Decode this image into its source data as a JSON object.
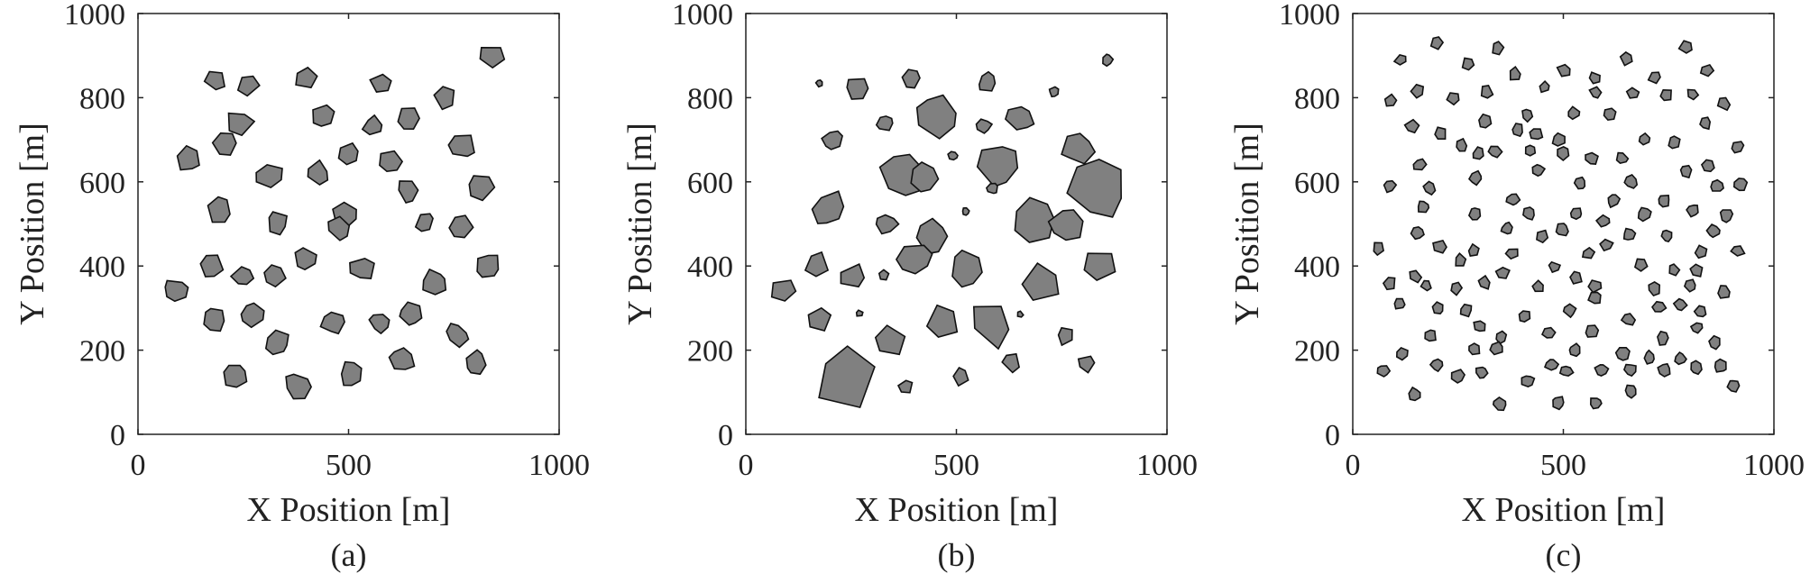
{
  "chart_data": [
    {
      "type": "scatter",
      "panel_label": "(a)",
      "xlabel": "X Position [m]",
      "ylabel": "Y Position [m]",
      "xlim": [
        0,
        1000
      ],
      "ylim": [
        0,
        1000
      ],
      "xticks": [
        "0",
        "500",
        "1000"
      ],
      "yticks": [
        "0",
        "200",
        "400",
        "600",
        "800",
        "1000"
      ],
      "grid": false,
      "marker_fill": "#808080",
      "obstacles": [
        {
          "x": 187,
          "y": 840,
          "s": 28
        },
        {
          "x": 262,
          "y": 828,
          "s": 28
        },
        {
          "x": 398,
          "y": 842,
          "s": 28
        },
        {
          "x": 577,
          "y": 832,
          "s": 27
        },
        {
          "x": 730,
          "y": 800,
          "s": 29
        },
        {
          "x": 837,
          "y": 895,
          "s": 31
        },
        {
          "x": 240,
          "y": 738,
          "s": 34
        },
        {
          "x": 442,
          "y": 754,
          "s": 30
        },
        {
          "x": 560,
          "y": 730,
          "s": 26
        },
        {
          "x": 643,
          "y": 748,
          "s": 30
        },
        {
          "x": 206,
          "y": 690,
          "s": 30
        },
        {
          "x": 768,
          "y": 682,
          "s": 33
        },
        {
          "x": 120,
          "y": 655,
          "s": 30
        },
        {
          "x": 312,
          "y": 615,
          "s": 33
        },
        {
          "x": 427,
          "y": 618,
          "s": 31
        },
        {
          "x": 502,
          "y": 664,
          "s": 28
        },
        {
          "x": 596,
          "y": 646,
          "s": 29
        },
        {
          "x": 643,
          "y": 576,
          "s": 31
        },
        {
          "x": 812,
          "y": 585,
          "s": 33
        },
        {
          "x": 195,
          "y": 532,
          "s": 33
        },
        {
          "x": 330,
          "y": 502,
          "s": 29
        },
        {
          "x": 491,
          "y": 520,
          "s": 30
        },
        {
          "x": 480,
          "y": 488,
          "s": 30
        },
        {
          "x": 682,
          "y": 504,
          "s": 27
        },
        {
          "x": 765,
          "y": 490,
          "s": 30
        },
        {
          "x": 172,
          "y": 400,
          "s": 31
        },
        {
          "x": 249,
          "y": 376,
          "s": 29
        },
        {
          "x": 324,
          "y": 381,
          "s": 28
        },
        {
          "x": 398,
          "y": 416,
          "s": 28
        },
        {
          "x": 532,
          "y": 395,
          "s": 31
        },
        {
          "x": 705,
          "y": 362,
          "s": 31
        },
        {
          "x": 832,
          "y": 400,
          "s": 33
        },
        {
          "x": 92,
          "y": 340,
          "s": 32
        },
        {
          "x": 180,
          "y": 272,
          "s": 30
        },
        {
          "x": 271,
          "y": 286,
          "s": 29
        },
        {
          "x": 466,
          "y": 268,
          "s": 32
        },
        {
          "x": 574,
          "y": 266,
          "s": 26
        },
        {
          "x": 648,
          "y": 286,
          "s": 27
        },
        {
          "x": 758,
          "y": 237,
          "s": 28
        },
        {
          "x": 330,
          "y": 220,
          "s": 31
        },
        {
          "x": 628,
          "y": 176,
          "s": 31
        },
        {
          "x": 803,
          "y": 170,
          "s": 31
        },
        {
          "x": 229,
          "y": 140,
          "s": 30
        },
        {
          "x": 380,
          "y": 115,
          "s": 33
        },
        {
          "x": 508,
          "y": 142,
          "s": 32
        }
      ]
    },
    {
      "type": "scatter",
      "panel_label": "(b)",
      "xlabel": "X Position [m]",
      "ylabel": "Y Position [m]",
      "xlim": [
        0,
        1000
      ],
      "ylim": [
        0,
        1000
      ],
      "xticks": [
        "0",
        "500",
        "1000"
      ],
      "yticks": [
        "0",
        "200",
        "400",
        "600",
        "800",
        "1000"
      ],
      "grid": false,
      "marker_fill": "#808080",
      "obstacles": [
        {
          "x": 175,
          "y": 835,
          "s": 9
        },
        {
          "x": 264,
          "y": 820,
          "s": 30
        },
        {
          "x": 392,
          "y": 845,
          "s": 22
        },
        {
          "x": 572,
          "y": 836,
          "s": 25
        },
        {
          "x": 859,
          "y": 890,
          "s": 15
        },
        {
          "x": 732,
          "y": 813,
          "s": 12
        },
        {
          "x": 453,
          "y": 756,
          "s": 58
        },
        {
          "x": 330,
          "y": 740,
          "s": 21
        },
        {
          "x": 566,
          "y": 733,
          "s": 18
        },
        {
          "x": 652,
          "y": 753,
          "s": 33
        },
        {
          "x": 205,
          "y": 698,
          "s": 25
        },
        {
          "x": 788,
          "y": 680,
          "s": 40
        },
        {
          "x": 491,
          "y": 663,
          "s": 12
        },
        {
          "x": 604,
          "y": 643,
          "s": 51
        },
        {
          "x": 377,
          "y": 620,
          "s": 59
        },
        {
          "x": 424,
          "y": 612,
          "s": 38
        },
        {
          "x": 586,
          "y": 586,
          "s": 15
        },
        {
          "x": 834,
          "y": 580,
          "s": 70
        },
        {
          "x": 198,
          "y": 536,
          "s": 44
        },
        {
          "x": 333,
          "y": 500,
          "s": 28
        },
        {
          "x": 522,
          "y": 530,
          "s": 9
        },
        {
          "x": 689,
          "y": 511,
          "s": 54
        },
        {
          "x": 766,
          "y": 500,
          "s": 44
        },
        {
          "x": 443,
          "y": 470,
          "s": 41
        },
        {
          "x": 403,
          "y": 418,
          "s": 42
        },
        {
          "x": 527,
          "y": 393,
          "s": 44
        },
        {
          "x": 168,
          "y": 404,
          "s": 29
        },
        {
          "x": 252,
          "y": 374,
          "s": 38
        },
        {
          "x": 327,
          "y": 377,
          "s": 15
        },
        {
          "x": 703,
          "y": 360,
          "s": 45
        },
        {
          "x": 836,
          "y": 405,
          "s": 44
        },
        {
          "x": 89,
          "y": 342,
          "s": 32
        },
        {
          "x": 176,
          "y": 274,
          "s": 28
        },
        {
          "x": 270,
          "y": 288,
          "s": 9
        },
        {
          "x": 466,
          "y": 263,
          "s": 42
        },
        {
          "x": 584,
          "y": 262,
          "s": 57
        },
        {
          "x": 651,
          "y": 285,
          "s": 9
        },
        {
          "x": 339,
          "y": 224,
          "s": 42
        },
        {
          "x": 758,
          "y": 233,
          "s": 21
        },
        {
          "x": 631,
          "y": 172,
          "s": 24
        },
        {
          "x": 808,
          "y": 168,
          "s": 21
        },
        {
          "x": 239,
          "y": 133,
          "s": 74
        },
        {
          "x": 381,
          "y": 113,
          "s": 18
        },
        {
          "x": 510,
          "y": 139,
          "s": 22
        }
      ]
    },
    {
      "type": "scatter",
      "panel_label": "(c)",
      "xlabel": "X Position [m]",
      "ylabel": "Y Position [m]",
      "xlim": [
        0,
        1000
      ],
      "ylim": [
        0,
        1000
      ],
      "xticks": [
        "0",
        "500",
        "1000"
      ],
      "yticks": [
        "0",
        "200",
        "400",
        "600",
        "800",
        "1000"
      ],
      "grid": false,
      "marker_fill": "#808080",
      "obstacles": [
        {
          "x": 115,
          "y": 890,
          "s": 16
        },
        {
          "x": 200,
          "y": 932,
          "s": 16
        },
        {
          "x": 345,
          "y": 917,
          "s": 16
        },
        {
          "x": 502,
          "y": 865,
          "s": 17
        },
        {
          "x": 650,
          "y": 893,
          "s": 16
        },
        {
          "x": 791,
          "y": 921,
          "s": 16
        },
        {
          "x": 275,
          "y": 880,
          "s": 16
        },
        {
          "x": 385,
          "y": 856,
          "s": 16
        },
        {
          "x": 455,
          "y": 825,
          "s": 15
        },
        {
          "x": 575,
          "y": 845,
          "s": 16
        },
        {
          "x": 717,
          "y": 850,
          "s": 16
        },
        {
          "x": 840,
          "y": 865,
          "s": 16
        },
        {
          "x": 90,
          "y": 792,
          "s": 15
        },
        {
          "x": 155,
          "y": 816,
          "s": 16
        },
        {
          "x": 238,
          "y": 800,
          "s": 16
        },
        {
          "x": 318,
          "y": 812,
          "s": 16
        },
        {
          "x": 578,
          "y": 812,
          "s": 16
        },
        {
          "x": 665,
          "y": 810,
          "s": 16
        },
        {
          "x": 743,
          "y": 806,
          "s": 16
        },
        {
          "x": 807,
          "y": 808,
          "s": 15
        },
        {
          "x": 881,
          "y": 786,
          "s": 16
        },
        {
          "x": 140,
          "y": 732,
          "s": 16
        },
        {
          "x": 208,
          "y": 714,
          "s": 16
        },
        {
          "x": 315,
          "y": 744,
          "s": 16
        },
        {
          "x": 415,
          "y": 760,
          "s": 16
        },
        {
          "x": 525,
          "y": 762,
          "s": 16
        },
        {
          "x": 610,
          "y": 760,
          "s": 16
        },
        {
          "x": 837,
          "y": 740,
          "s": 16
        },
        {
          "x": 258,
          "y": 686,
          "s": 16
        },
        {
          "x": 338,
          "y": 672,
          "s": 16
        },
        {
          "x": 392,
          "y": 722,
          "s": 16
        },
        {
          "x": 435,
          "y": 712,
          "s": 16
        },
        {
          "x": 488,
          "y": 700,
          "s": 16
        },
        {
          "x": 693,
          "y": 700,
          "s": 16
        },
        {
          "x": 762,
          "y": 693,
          "s": 16
        },
        {
          "x": 914,
          "y": 682,
          "s": 16
        },
        {
          "x": 88,
          "y": 590,
          "s": 16
        },
        {
          "x": 158,
          "y": 640,
          "s": 16
        },
        {
          "x": 298,
          "y": 666,
          "s": 16
        },
        {
          "x": 423,
          "y": 674,
          "s": 16
        },
        {
          "x": 497,
          "y": 668,
          "s": 16
        },
        {
          "x": 567,
          "y": 656,
          "s": 16
        },
        {
          "x": 638,
          "y": 656,
          "s": 16
        },
        {
          "x": 793,
          "y": 626,
          "s": 16
        },
        {
          "x": 843,
          "y": 638,
          "s": 16
        },
        {
          "x": 183,
          "y": 585,
          "s": 16
        },
        {
          "x": 293,
          "y": 609,
          "s": 16
        },
        {
          "x": 440,
          "y": 628,
          "s": 16
        },
        {
          "x": 540,
          "y": 595,
          "s": 16
        },
        {
          "x": 618,
          "y": 555,
          "s": 16
        },
        {
          "x": 660,
          "y": 600,
          "s": 16
        },
        {
          "x": 738,
          "y": 555,
          "s": 16
        },
        {
          "x": 866,
          "y": 590,
          "s": 16
        },
        {
          "x": 921,
          "y": 594,
          "s": 16
        },
        {
          "x": 168,
          "y": 541,
          "s": 16
        },
        {
          "x": 380,
          "y": 559,
          "s": 16
        },
        {
          "x": 419,
          "y": 525,
          "s": 16
        },
        {
          "x": 530,
          "y": 524,
          "s": 16
        },
        {
          "x": 595,
          "y": 507,
          "s": 16
        },
        {
          "x": 692,
          "y": 523,
          "s": 16
        },
        {
          "x": 808,
          "y": 533,
          "s": 16
        },
        {
          "x": 888,
          "y": 520,
          "s": 16
        },
        {
          "x": 289,
          "y": 526,
          "s": 16
        },
        {
          "x": 366,
          "y": 489,
          "s": 16
        },
        {
          "x": 498,
          "y": 487,
          "s": 16
        },
        {
          "x": 657,
          "y": 475,
          "s": 16
        },
        {
          "x": 746,
          "y": 472,
          "s": 16
        },
        {
          "x": 857,
          "y": 483,
          "s": 16
        },
        {
          "x": 155,
          "y": 478,
          "s": 16
        },
        {
          "x": 61,
          "y": 441,
          "s": 16
        },
        {
          "x": 206,
          "y": 446,
          "s": 16
        },
        {
          "x": 255,
          "y": 413,
          "s": 16
        },
        {
          "x": 288,
          "y": 437,
          "s": 16
        },
        {
          "x": 378,
          "y": 430,
          "s": 16
        },
        {
          "x": 449,
          "y": 470,
          "s": 16
        },
        {
          "x": 560,
          "y": 430,
          "s": 16
        },
        {
          "x": 602,
          "y": 451,
          "s": 16
        },
        {
          "x": 825,
          "y": 433,
          "s": 16
        },
        {
          "x": 915,
          "y": 437,
          "s": 16
        },
        {
          "x": 147,
          "y": 376,
          "s": 16
        },
        {
          "x": 356,
          "y": 384,
          "s": 16
        },
        {
          "x": 477,
          "y": 398,
          "s": 16
        },
        {
          "x": 530,
          "y": 372,
          "s": 16
        },
        {
          "x": 683,
          "y": 404,
          "s": 16
        },
        {
          "x": 762,
          "y": 392,
          "s": 16
        },
        {
          "x": 817,
          "y": 389,
          "s": 16
        },
        {
          "x": 87,
          "y": 360,
          "s": 16
        },
        {
          "x": 175,
          "y": 353,
          "s": 16
        },
        {
          "x": 244,
          "y": 347,
          "s": 16
        },
        {
          "x": 312,
          "y": 360,
          "s": 16
        },
        {
          "x": 440,
          "y": 352,
          "s": 16
        },
        {
          "x": 575,
          "y": 353,
          "s": 16
        },
        {
          "x": 715,
          "y": 347,
          "s": 16
        },
        {
          "x": 801,
          "y": 355,
          "s": 16
        },
        {
          "x": 881,
          "y": 338,
          "s": 16
        },
        {
          "x": 112,
          "y": 310,
          "s": 16
        },
        {
          "x": 202,
          "y": 298,
          "s": 16
        },
        {
          "x": 269,
          "y": 296,
          "s": 16
        },
        {
          "x": 407,
          "y": 279,
          "s": 16
        },
        {
          "x": 515,
          "y": 295,
          "s": 16
        },
        {
          "x": 575,
          "y": 323,
          "s": 16
        },
        {
          "x": 655,
          "y": 273,
          "s": 16
        },
        {
          "x": 728,
          "y": 303,
          "s": 16
        },
        {
          "x": 778,
          "y": 308,
          "s": 16
        },
        {
          "x": 826,
          "y": 291,
          "s": 16
        },
        {
          "x": 183,
          "y": 234,
          "s": 16
        },
        {
          "x": 301,
          "y": 257,
          "s": 16
        },
        {
          "x": 352,
          "y": 230,
          "s": 16
        },
        {
          "x": 467,
          "y": 240,
          "s": 16
        },
        {
          "x": 567,
          "y": 244,
          "s": 16
        },
        {
          "x": 735,
          "y": 228,
          "s": 16
        },
        {
          "x": 818,
          "y": 253,
          "s": 16
        },
        {
          "x": 860,
          "y": 218,
          "s": 16
        },
        {
          "x": 116,
          "y": 191,
          "s": 16
        },
        {
          "x": 288,
          "y": 202,
          "s": 16
        },
        {
          "x": 343,
          "y": 204,
          "s": 16
        },
        {
          "x": 471,
          "y": 165,
          "s": 16
        },
        {
          "x": 527,
          "y": 200,
          "s": 16
        },
        {
          "x": 641,
          "y": 192,
          "s": 16
        },
        {
          "x": 704,
          "y": 183,
          "s": 16
        },
        {
          "x": 778,
          "y": 179,
          "s": 16
        },
        {
          "x": 873,
          "y": 162,
          "s": 16
        },
        {
          "x": 72,
          "y": 151,
          "s": 16
        },
        {
          "x": 199,
          "y": 165,
          "s": 16
        },
        {
          "x": 250,
          "y": 138,
          "s": 16
        },
        {
          "x": 306,
          "y": 147,
          "s": 16
        },
        {
          "x": 415,
          "y": 127,
          "s": 16
        },
        {
          "x": 508,
          "y": 150,
          "s": 16
        },
        {
          "x": 591,
          "y": 153,
          "s": 16
        },
        {
          "x": 659,
          "y": 153,
          "s": 16
        },
        {
          "x": 740,
          "y": 153,
          "s": 16
        },
        {
          "x": 816,
          "y": 160,
          "s": 16
        },
        {
          "x": 146,
          "y": 95,
          "s": 16
        },
        {
          "x": 350,
          "y": 71,
          "s": 16
        },
        {
          "x": 488,
          "y": 75,
          "s": 16
        },
        {
          "x": 578,
          "y": 74,
          "s": 16
        },
        {
          "x": 660,
          "y": 102,
          "s": 16
        },
        {
          "x": 905,
          "y": 116,
          "s": 16
        }
      ]
    }
  ]
}
